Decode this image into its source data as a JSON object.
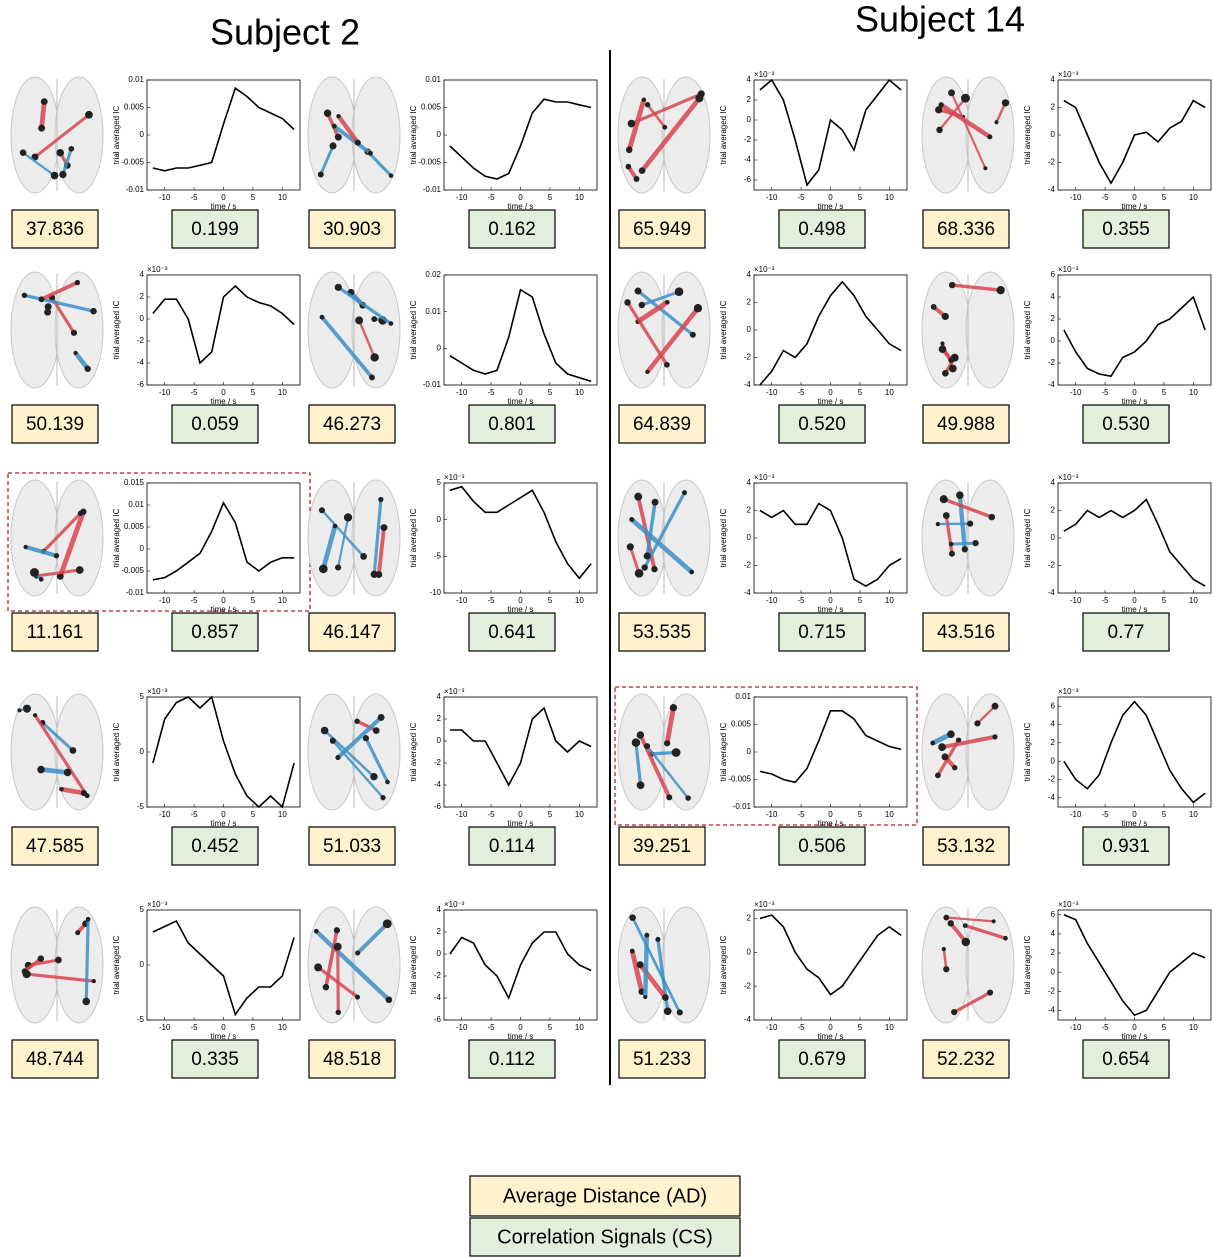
{
  "subjects": [
    {
      "title": "Subject 2",
      "panels": [
        {
          "ad": "37.836",
          "cs": "0.199"
        },
        {
          "ad": "30.903",
          "cs": "0.162"
        },
        {
          "ad": "50.139",
          "cs": "0.059"
        },
        {
          "ad": "46.273",
          "cs": "0.801"
        },
        {
          "ad": "11.161",
          "cs": "0.857"
        },
        {
          "ad": "46.147",
          "cs": "0.641"
        },
        {
          "ad": "47.585",
          "cs": "0.452"
        },
        {
          "ad": "51.033",
          "cs": "0.114"
        },
        {
          "ad": "48.744",
          "cs": "0.335"
        },
        {
          "ad": "48.518",
          "cs": "0.112"
        }
      ]
    },
    {
      "title": "Subject 14",
      "panels": [
        {
          "ad": "65.949",
          "cs": "0.498"
        },
        {
          "ad": "68.336",
          "cs": "0.355"
        },
        {
          "ad": "64.839",
          "cs": "0.520"
        },
        {
          "ad": "49.988",
          "cs": "0.530"
        },
        {
          "ad": "53.535",
          "cs": "0.715"
        },
        {
          "ad": "43.516",
          "cs": "0.77"
        },
        {
          "ad": "39.251",
          "cs": "0.506"
        },
        {
          "ad": "53.132",
          "cs": "0.931"
        },
        {
          "ad": "51.233",
          "cs": "0.679"
        },
        {
          "ad": "52.232",
          "cs": "0.654"
        }
      ]
    }
  ],
  "legend": {
    "ad": "Average Distance (AD)",
    "cs": "Correlation Signals (CS)"
  },
  "chart_data": [
    {
      "type": "line",
      "xlabel": "time / s",
      "ylabel": "trial averaged IC",
      "x": [
        -12,
        -10,
        -8,
        -6,
        -4,
        -2,
        0,
        2,
        4,
        6,
        8,
        10,
        12
      ],
      "values": [
        -0.006,
        -0.0065,
        -0.006,
        -0.006,
        -0.0055,
        -0.005,
        0.002,
        0.0085,
        0.007,
        0.005,
        0.004,
        0.003,
        0.001
      ],
      "xlim": [
        -13,
        13
      ],
      "xticks": [
        -10,
        -5,
        0,
        5,
        10
      ],
      "ylim": [
        -0.01,
        0.01
      ],
      "yticks": [
        -0.01,
        -0.005,
        0,
        0.005,
        0.01
      ],
      "color": "#000000"
    },
    {
      "type": "line",
      "xlabel": "time / s",
      "ylabel": "trial averaged IC",
      "x": [
        -12,
        -10,
        -8,
        -6,
        -4,
        -2,
        0,
        2,
        4,
        6,
        8,
        10,
        12
      ],
      "values": [
        -0.002,
        -0.004,
        -0.006,
        -0.0075,
        -0.008,
        -0.007,
        -0.002,
        0.004,
        0.0065,
        0.006,
        0.006,
        0.0055,
        0.005
      ],
      "xlim": [
        -13,
        13
      ],
      "xticks": [
        -10,
        -5,
        0,
        5,
        10
      ],
      "ylim": [
        -0.01,
        0.01
      ],
      "yticks": [
        -0.01,
        -0.005,
        0,
        0.005,
        0.01
      ],
      "color": "#000000"
    },
    {
      "type": "line",
      "xlabel": "time / s",
      "ylabel": "trial averaged IC",
      "yscale_label": "×10⁻³",
      "x": [
        -12,
        -10,
        -8,
        -6,
        -4,
        -2,
        0,
        2,
        4,
        6,
        8,
        10,
        12
      ],
      "values": [
        0.5,
        1.8,
        1.8,
        0,
        -4,
        -3,
        2,
        3,
        2,
        1.5,
        1.2,
        0.5,
        -0.5
      ],
      "xlim": [
        -13,
        13
      ],
      "xticks": [
        -10,
        -5,
        0,
        5,
        10
      ],
      "ylim": [
        -6,
        4
      ],
      "yticks": [
        -6,
        -4,
        -2,
        0,
        2,
        4
      ],
      "color": "#000000"
    },
    {
      "type": "line",
      "xlabel": "time / s",
      "ylabel": "trial averaged IC",
      "x": [
        -12,
        -10,
        -8,
        -6,
        -4,
        -2,
        0,
        2,
        4,
        6,
        8,
        10,
        12
      ],
      "values": [
        -0.002,
        -0.004,
        -0.006,
        -0.007,
        -0.006,
        0.003,
        0.016,
        0.014,
        0.004,
        -0.004,
        -0.007,
        -0.008,
        -0.009
      ],
      "xlim": [
        -13,
        13
      ],
      "xticks": [
        -10,
        -5,
        0,
        5,
        10
      ],
      "ylim": [
        -0.01,
        0.02
      ],
      "yticks": [
        -0.01,
        0,
        0.01,
        0.02
      ],
      "color": "#000000"
    },
    {
      "type": "line",
      "xlabel": "time / s",
      "ylabel": "trial averaged IC",
      "highlight": true,
      "x": [
        -12,
        -10,
        -8,
        -6,
        -4,
        -2,
        0,
        2,
        4,
        6,
        8,
        10,
        12
      ],
      "values": [
        -0.007,
        -0.0065,
        -0.005,
        -0.003,
        -0.001,
        0.004,
        0.0105,
        0.006,
        -0.003,
        -0.005,
        -0.003,
        -0.002,
        -0.002
      ],
      "xlim": [
        -13,
        13
      ],
      "xticks": [
        -10,
        -5,
        0,
        5,
        10
      ],
      "ylim": [
        -0.01,
        0.015
      ],
      "yticks": [
        -0.01,
        -0.005,
        0,
        0.005,
        0.01,
        0.015
      ],
      "color": "#000000"
    },
    {
      "type": "line",
      "xlabel": "time / s",
      "ylabel": "trial averaged IC",
      "yscale_label": "×10⁻³",
      "x": [
        -12,
        -10,
        -8,
        -6,
        -4,
        -2,
        0,
        2,
        4,
        6,
        8,
        10,
        12
      ],
      "values": [
        4,
        4.5,
        2.5,
        1,
        1,
        2,
        3,
        4,
        1,
        -3,
        -6,
        -8,
        -6
      ],
      "xlim": [
        -13,
        13
      ],
      "xticks": [
        -10,
        -5,
        0,
        5,
        10
      ],
      "ylim": [
        -10,
        5
      ],
      "yticks": [
        -10,
        -5,
        0,
        5
      ],
      "color": "#000000"
    },
    {
      "type": "line",
      "xlabel": "time / s",
      "ylabel": "trial averaged IC",
      "yscale_label": "×10⁻³",
      "x": [
        -12,
        -10,
        -8,
        -6,
        -4,
        -2,
        0,
        2,
        4,
        6,
        8,
        10,
        12
      ],
      "values": [
        -1,
        3,
        4.5,
        5,
        4,
        5,
        1,
        -2,
        -4,
        -5,
        -4,
        -5,
        -1
      ],
      "xlim": [
        -13,
        13
      ],
      "xticks": [
        -10,
        -5,
        0,
        5,
        10
      ],
      "ylim": [
        -5,
        5
      ],
      "yticks": [
        -5,
        0,
        5
      ],
      "color": "#000000"
    },
    {
      "type": "line",
      "xlabel": "time / s",
      "ylabel": "trial averaged IC",
      "yscale_label": "×10⁻³",
      "x": [
        -12,
        -10,
        -8,
        -6,
        -4,
        -2,
        0,
        2,
        4,
        6,
        8,
        10,
        12
      ],
      "values": [
        1,
        1,
        0,
        0,
        -2,
        -4,
        -2,
        2,
        3,
        0,
        -1,
        0,
        -0.5
      ],
      "xlim": [
        -13,
        13
      ],
      "xticks": [
        -10,
        -5,
        0,
        5,
        10
      ],
      "ylim": [
        -6,
        4
      ],
      "yticks": [
        -6,
        -4,
        -2,
        0,
        2,
        4
      ],
      "color": "#000000"
    },
    {
      "type": "line",
      "xlabel": "time / s",
      "ylabel": "trial averaged IC",
      "yscale_label": "×10⁻³",
      "x": [
        -12,
        -10,
        -8,
        -6,
        -4,
        -2,
        0,
        2,
        4,
        6,
        8,
        10,
        12
      ],
      "values": [
        3,
        3.5,
        4,
        2,
        1,
        0,
        -1,
        -4.5,
        -3,
        -2,
        -2,
        -1,
        2.5
      ],
      "xlim": [
        -13,
        13
      ],
      "xticks": [
        -10,
        -5,
        0,
        5,
        10
      ],
      "ylim": [
        -5,
        5
      ],
      "yticks": [
        -5,
        0,
        5
      ],
      "color": "#000000"
    },
    {
      "type": "line",
      "xlabel": "time / s",
      "ylabel": "trial averaged IC",
      "yscale_label": "×10⁻³",
      "x": [
        -12,
        -10,
        -8,
        -6,
        -4,
        -2,
        0,
        2,
        4,
        6,
        8,
        10,
        12
      ],
      "values": [
        0,
        1.5,
        1,
        -1,
        -2,
        -4,
        -1,
        1,
        2,
        2,
        0,
        -1,
        -1.5
      ],
      "xlim": [
        -13,
        13
      ],
      "xticks": [
        -10,
        -5,
        0,
        5,
        10
      ],
      "ylim": [
        -6,
        4
      ],
      "yticks": [
        -6,
        -4,
        -2,
        0,
        2,
        4
      ],
      "color": "#000000"
    },
    {
      "type": "line",
      "xlabel": "time / s",
      "ylabel": "trial averaged IC",
      "yscale_label": "×10⁻³",
      "x": [
        -12,
        -10,
        -8,
        -6,
        -4,
        -2,
        0,
        2,
        4,
        6,
        8,
        10,
        12
      ],
      "values": [
        3,
        4,
        2,
        -2,
        -6.5,
        -5,
        0,
        -1,
        -3,
        1,
        2.5,
        4,
        3
      ],
      "xlim": [
        -13,
        13
      ],
      "xticks": [
        -10,
        -5,
        0,
        5,
        10
      ],
      "ylim": [
        -7,
        4
      ],
      "yticks": [
        -6,
        -4,
        -2,
        0,
        2,
        4
      ],
      "color": "#000000"
    },
    {
      "type": "line",
      "xlabel": "time / s",
      "ylabel": "trial averaged IC",
      "yscale_label": "×10⁻³",
      "x": [
        -12,
        -10,
        -8,
        -6,
        -4,
        -2,
        0,
        2,
        4,
        6,
        8,
        10,
        12
      ],
      "values": [
        2.5,
        2,
        0,
        -2,
        -3.5,
        -2,
        0,
        0.2,
        -0.5,
        0.5,
        1,
        2.5,
        2
      ],
      "xlim": [
        -13,
        13
      ],
      "xticks": [
        -10,
        -5,
        0,
        5,
        10
      ],
      "ylim": [
        -4,
        4
      ],
      "yticks": [
        -4,
        -2,
        0,
        2,
        4
      ],
      "color": "#000000"
    },
    {
      "type": "line",
      "xlabel": "time / s",
      "ylabel": "trial averaged IC",
      "yscale_label": "×10⁻³",
      "x": [
        -12,
        -10,
        -8,
        -6,
        -4,
        -2,
        0,
        2,
        4,
        6,
        8,
        10,
        12
      ],
      "values": [
        -4,
        -3,
        -1.5,
        -2,
        -1,
        1,
        2.5,
        3.5,
        2.5,
        1,
        0,
        -1,
        -1.5
      ],
      "xlim": [
        -13,
        13
      ],
      "xticks": [
        -10,
        -5,
        0,
        5,
        10
      ],
      "ylim": [
        -4,
        4
      ],
      "yticks": [
        -4,
        -2,
        0,
        2,
        4
      ],
      "color": "#000000"
    },
    {
      "type": "line",
      "xlabel": "time / s",
      "ylabel": "trial averaged IC",
      "yscale_label": "×10⁻³",
      "x": [
        -12,
        -10,
        -8,
        -6,
        -4,
        -2,
        0,
        2,
        4,
        6,
        8,
        10,
        12
      ],
      "values": [
        1,
        -1,
        -2.5,
        -3,
        -3.2,
        -1.5,
        -1,
        0,
        1.5,
        2,
        3,
        4,
        1
      ],
      "xlim": [
        -13,
        13
      ],
      "xticks": [
        -10,
        -5,
        0,
        5,
        10
      ],
      "ylim": [
        -4,
        6
      ],
      "yticks": [
        -4,
        -2,
        0,
        2,
        4,
        6
      ],
      "color": "#000000"
    },
    {
      "type": "line",
      "xlabel": "time / s",
      "ylabel": "trial averaged IC",
      "yscale_label": "×10⁻³",
      "x": [
        -12,
        -10,
        -8,
        -6,
        -4,
        -2,
        0,
        2,
        4,
        6,
        8,
        10,
        12
      ],
      "values": [
        2,
        1.5,
        2,
        1,
        1,
        2.5,
        2,
        0,
        -3,
        -3.5,
        -3,
        -2,
        -1.5
      ],
      "xlim": [
        -13,
        13
      ],
      "xticks": [
        -10,
        -5,
        0,
        5,
        10
      ],
      "ylim": [
        -4,
        4
      ],
      "yticks": [
        -4,
        -2,
        0,
        2,
        4
      ],
      "color": "#000000"
    },
    {
      "type": "line",
      "xlabel": "time / s",
      "ylabel": "trial averaged IC",
      "yscale_label": "×10⁻³",
      "x": [
        -12,
        -10,
        -8,
        -6,
        -4,
        -2,
        0,
        2,
        4,
        6,
        8,
        10,
        12
      ],
      "values": [
        0.5,
        1,
        2,
        1.5,
        2,
        1.5,
        2,
        2.8,
        1,
        -1,
        -2,
        -3,
        -3.5
      ],
      "xlim": [
        -13,
        13
      ],
      "xticks": [
        -10,
        -5,
        0,
        5,
        10
      ],
      "ylim": [
        -4,
        4
      ],
      "yticks": [
        -4,
        -2,
        0,
        2,
        4
      ],
      "color": "#000000"
    },
    {
      "type": "line",
      "xlabel": "time / s",
      "ylabel": "trial averaged IC",
      "highlight": true,
      "x": [
        -12,
        -10,
        -8,
        -6,
        -4,
        -2,
        0,
        2,
        4,
        6,
        8,
        10,
        12
      ],
      "values": [
        -0.0035,
        -0.004,
        -0.005,
        -0.0055,
        -0.003,
        0.002,
        0.0075,
        0.0075,
        0.006,
        0.003,
        0.002,
        0.001,
        0.0005
      ],
      "xlim": [
        -13,
        13
      ],
      "xticks": [
        -10,
        -5,
        0,
        5,
        10
      ],
      "ylim": [
        -0.01,
        0.01
      ],
      "yticks": [
        -0.01,
        -0.005,
        0,
        0.005,
        0.01
      ],
      "color": "#000000"
    },
    {
      "type": "line",
      "xlabel": "time / s",
      "ylabel": "trial averaged IC",
      "yscale_label": "×10⁻³",
      "x": [
        -12,
        -10,
        -8,
        -6,
        -4,
        -2,
        0,
        2,
        4,
        6,
        8,
        10,
        12
      ],
      "values": [
        0,
        -2,
        -3,
        -1.5,
        2,
        5,
        6.5,
        5,
        2,
        -1,
        -3,
        -4.5,
        -3.5
      ],
      "xlim": [
        -13,
        13
      ],
      "xticks": [
        -10,
        -5,
        0,
        5,
        10
      ],
      "ylim": [
        -5,
        7
      ],
      "yticks": [
        -4,
        -2,
        0,
        2,
        4,
        6
      ],
      "color": "#000000"
    },
    {
      "type": "line",
      "xlabel": "time / s",
      "ylabel": "trial averaged IC",
      "yscale_label": "×10⁻³",
      "x": [
        -12,
        -10,
        -8,
        -6,
        -4,
        -2,
        0,
        2,
        4,
        6,
        8,
        10,
        12
      ],
      "values": [
        2,
        2.2,
        1.5,
        0,
        -1,
        -1.5,
        -2.5,
        -2,
        -1,
        0,
        1,
        1.5,
        1
      ],
      "xlim": [
        -13,
        13
      ],
      "xticks": [
        -10,
        -5,
        0,
        5,
        10
      ],
      "ylim": [
        -4,
        2.5
      ],
      "yticks": [
        -4,
        -2,
        0,
        2
      ],
      "color": "#000000"
    },
    {
      "type": "line",
      "xlabel": "time / s",
      "ylabel": "trial averaged IC",
      "yscale_label": "×10⁻³",
      "x": [
        -12,
        -10,
        -8,
        -6,
        -4,
        -2,
        0,
        2,
        4,
        6,
        8,
        10,
        12
      ],
      "values": [
        6,
        5.5,
        3,
        1,
        -1,
        -3,
        -4.5,
        -4,
        -2,
        0,
        1,
        2,
        1.5
      ],
      "xlim": [
        -13,
        13
      ],
      "xticks": [
        -10,
        -5,
        0,
        5,
        10
      ],
      "ylim": [
        -5,
        6.5
      ],
      "yticks": [
        -4,
        -2,
        0,
        2,
        4,
        6
      ],
      "color": "#000000"
    }
  ]
}
